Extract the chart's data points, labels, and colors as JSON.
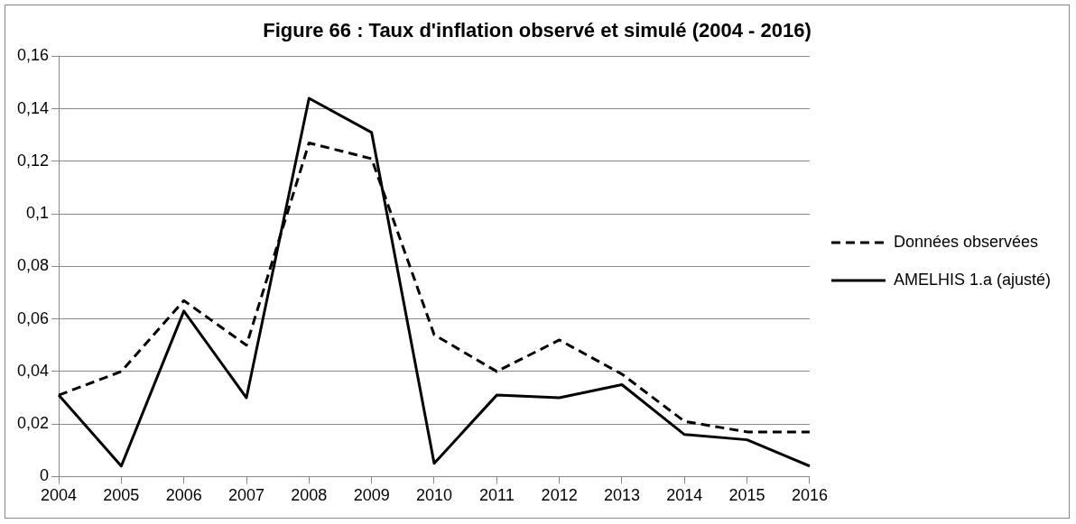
{
  "chart_data": {
    "type": "line",
    "title": "Figure 66 : Taux d'inflation observé et simulé (2004 - 2016)",
    "categories": [
      "2004",
      "2005",
      "2006",
      "2007",
      "2008",
      "2009",
      "2010",
      "2011",
      "2012",
      "2013",
      "2014",
      "2015",
      "2016"
    ],
    "series": [
      {
        "name": "Données observées",
        "color": "#000000",
        "line_style": "dashed",
        "values": [
          0.031,
          0.04,
          0.067,
          0.05,
          0.127,
          0.121,
          0.054,
          0.04,
          0.052,
          0.039,
          0.021,
          0.017,
          0.017
        ]
      },
      {
        "name": "AMELHIS 1.a (ajusté)",
        "color": "#000000",
        "line_style": "solid",
        "values": [
          0.031,
          0.004,
          0.063,
          0.03,
          0.144,
          0.131,
          0.005,
          0.031,
          0.03,
          0.035,
          0.016,
          0.014,
          0.004
        ]
      }
    ],
    "ylim": [
      0,
      0.16
    ],
    "yticks": [
      0,
      {
        "value": 0.02,
        "label": "0,02"
      },
      {
        "value": 0.04,
        "label": "0,04"
      },
      {
        "value": 0.06,
        "label": "0,06"
      },
      {
        "value": 0.08,
        "label": "0,08"
      },
      {
        "value": 0.1,
        "label": "0,1"
      },
      {
        "value": 0.12,
        "label": "0,12"
      },
      {
        "value": 0.14,
        "label": "0,14"
      },
      {
        "value": 0.16,
        "label": "0,16"
      }
    ],
    "grid": "y",
    "legend": "right",
    "marker": "none"
  }
}
